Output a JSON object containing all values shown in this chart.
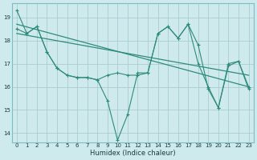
{
  "xlabel": "Humidex (Indice chaleur)",
  "background_color": "#ceeaed",
  "grid_color": "#aacdd2",
  "line_color": "#2e8b7a",
  "xlim": [
    -0.5,
    23.5
  ],
  "ylim": [
    13.6,
    19.6
  ],
  "yticks": [
    14,
    15,
    16,
    17,
    18,
    19
  ],
  "xticks": [
    0,
    1,
    2,
    3,
    4,
    5,
    6,
    7,
    8,
    9,
    10,
    11,
    12,
    13,
    14,
    15,
    16,
    17,
    18,
    19,
    20,
    21,
    22,
    23
  ],
  "series1_x": [
    0,
    1,
    2,
    3,
    4,
    5,
    6,
    7,
    8,
    9,
    10,
    11,
    12,
    13,
    14,
    15,
    16,
    17,
    18,
    19,
    20,
    21,
    22,
    23
  ],
  "series1_y": [
    19.3,
    18.3,
    18.6,
    17.5,
    16.8,
    16.5,
    16.4,
    16.4,
    16.3,
    15.4,
    13.7,
    14.8,
    16.6,
    16.6,
    18.3,
    18.6,
    18.1,
    18.7,
    17.8,
    15.9,
    15.1,
    16.9,
    17.1,
    15.9
  ],
  "series2_x": [
    0,
    1,
    2,
    3,
    4,
    5,
    6,
    7,
    8,
    9,
    10,
    11,
    12,
    13,
    14,
    15,
    16,
    17,
    18,
    19,
    20,
    21,
    22,
    23
  ],
  "series2_y": [
    18.5,
    18.3,
    18.6,
    17.5,
    16.8,
    16.5,
    16.4,
    16.4,
    16.3,
    16.5,
    16.6,
    16.5,
    16.5,
    16.6,
    18.3,
    18.6,
    18.1,
    18.7,
    17.0,
    16.0,
    15.1,
    17.0,
    17.1,
    16.0
  ],
  "trend1_x": [
    0,
    23
  ],
  "trend1_y": [
    18.7,
    16.0
  ],
  "trend2_x": [
    0,
    23
  ],
  "trend2_y": [
    18.3,
    16.5
  ]
}
